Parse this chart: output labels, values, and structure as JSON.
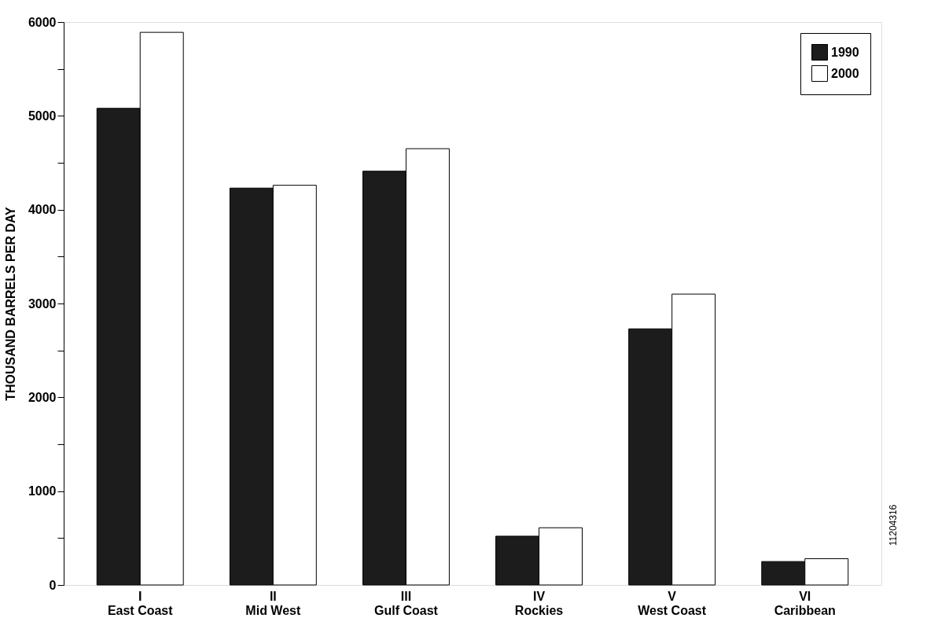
{
  "chart_data": {
    "type": "bar",
    "ylabel": "THOUSAND BARRELS PER DAY",
    "categories": [
      "I\nEast Coast",
      "II\nMid West",
      "III\nGulf Coast",
      "IV\nRockies",
      "V\nWest Coast",
      "VI\nCaribbean"
    ],
    "series": [
      {
        "name": "1990",
        "color": "#1c1c1c",
        "values": [
          5080,
          4230,
          4410,
          520,
          2730,
          250
        ]
      },
      {
        "name": "2000",
        "color": "#ffffff",
        "values": [
          5890,
          4260,
          4650,
          610,
          3100,
          280
        ]
      }
    ],
    "ylim": [
      0,
      6000
    ],
    "yticks": [
      0,
      {
        "value": 500,
        "label": null
      },
      1000,
      {
        "value": 1500,
        "label": null
      },
      2000,
      {
        "value": 2500,
        "label": null
      },
      3000,
      {
        "value": 3500,
        "label": null
      },
      4000,
      {
        "value": 4500,
        "label": null
      },
      5000,
      {
        "value": 5500,
        "label": null
      },
      6000
    ],
    "grid": false,
    "legend": "top right",
    "annotations": [
      "11204316"
    ]
  }
}
